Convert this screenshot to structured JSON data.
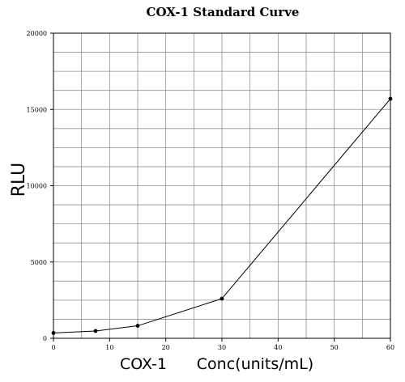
{
  "chart_data": {
    "type": "line",
    "title": "COX-1 Standard Curve",
    "xlabel_left": "COX-1",
    "xlabel_right": "Conc(units/mL)",
    "ylabel": "RLU",
    "xlim": [
      0,
      60
    ],
    "ylim": [
      0,
      20000
    ],
    "x_ticks": [
      0,
      10,
      20,
      30,
      40,
      50,
      60
    ],
    "y_ticks": [
      0,
      5000,
      10000,
      15000,
      20000
    ],
    "x_grid_step": 5,
    "y_grid_step": 1250,
    "grid": true,
    "legend": "none",
    "series": [
      {
        "x": [
          0,
          7.5,
          15,
          30,
          60
        ],
        "y": [
          350,
          480,
          820,
          2600,
          15700
        ]
      }
    ],
    "colors": {
      "line": "#000000",
      "grid": "#909090",
      "frame": "#000000"
    }
  }
}
